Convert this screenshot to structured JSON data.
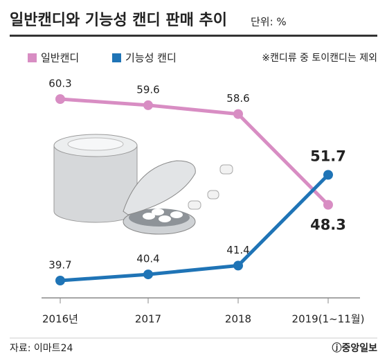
{
  "chart_data": {
    "type": "line",
    "title": "일반캔디와 기능성 캔디 판매 추이",
    "subtitle": "단위: %",
    "note": "※캔디류 중 토이캔디는 제외",
    "source": "자료: 이마트24",
    "logo": "ⓙ중앙일보",
    "categories": [
      "2016년",
      "2017",
      "2018",
      "2019(1~11월)"
    ],
    "series": [
      {
        "name": "일반캔디",
        "color": "#d88dc3",
        "values": [
          60.3,
          59.6,
          58.6,
          48.3
        ]
      },
      {
        "name": "기능성 캔디",
        "color": "#1f74b6",
        "values": [
          39.7,
          40.4,
          41.4,
          51.7
        ]
      }
    ]
  }
}
